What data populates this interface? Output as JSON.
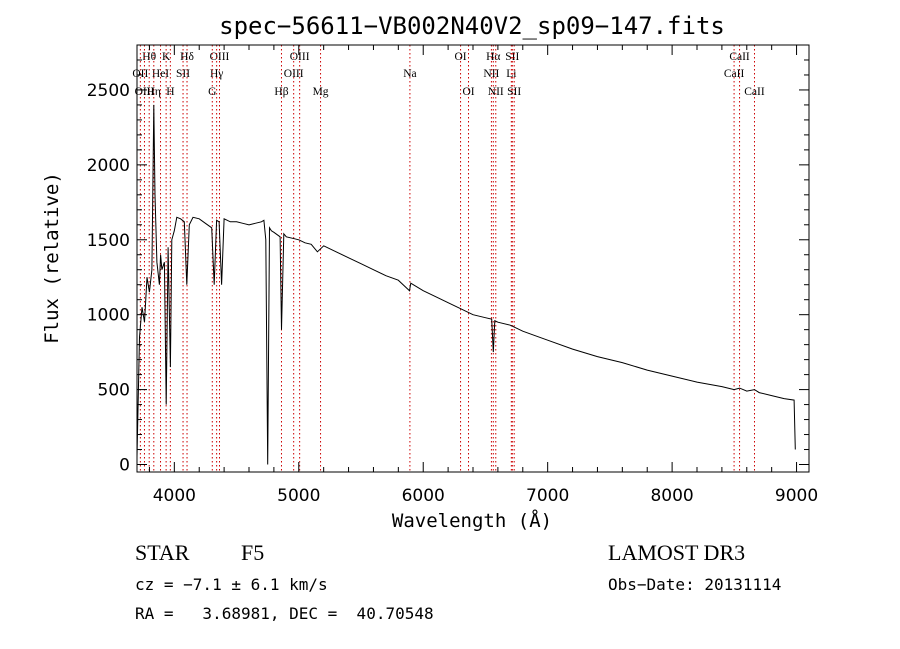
{
  "chart_data": {
    "type": "line",
    "title": "spec−56611−VB002N40V2_sp09−147.fits",
    "xlabel": "Wavelength (Å)",
    "ylabel": "Flux (relative)",
    "xlim": [
      3700,
      9100
    ],
    "ylim": [
      -50,
      2800
    ],
    "x_ticks": [
      4000,
      5000,
      6000,
      7000,
      8000,
      9000
    ],
    "x_tick_labels": [
      "4000",
      "5000",
      "6000",
      "7000",
      "8000",
      "9000"
    ],
    "y_ticks": [
      0,
      500,
      1000,
      1500,
      2000,
      2500
    ],
    "y_tick_labels": [
      "0",
      "500",
      "1000",
      "1500",
      "2000",
      "2500"
    ],
    "line_color": "#000000",
    "marker_color": "#cc0000",
    "series": [
      {
        "name": "flux",
        "x": [
          3700,
          3720,
          3740,
          3760,
          3780,
          3800,
          3820,
          3835,
          3845,
          3860,
          3880,
          3890,
          3900,
          3920,
          3935,
          3950,
          3968,
          3980,
          4000,
          4020,
          4050,
          4080,
          4100,
          4120,
          4150,
          4200,
          4250,
          4300,
          4320,
          4340,
          4360,
          4380,
          4400,
          4450,
          4500,
          4550,
          4600,
          4650,
          4700,
          4720,
          4735,
          4750,
          4765,
          4780,
          4800,
          4850,
          4861,
          4880,
          4900,
          4950,
          5000,
          5050,
          5100,
          5150,
          5200,
          5300,
          5400,
          5500,
          5600,
          5700,
          5800,
          5890,
          5900,
          6000,
          6100,
          6200,
          6300,
          6400,
          6500,
          6550,
          6563,
          6575,
          6600,
          6700,
          6800,
          6900,
          7000,
          7200,
          7400,
          7600,
          7800,
          8000,
          8200,
          8400,
          8498,
          8542,
          8600,
          8662,
          8700,
          8800,
          8900,
          8980,
          8990
        ],
        "y": [
          50,
          850,
          1050,
          950,
          1250,
          1150,
          1300,
          2400,
          1800,
          1350,
          1200,
          1400,
          1300,
          1350,
          400,
          1450,
          650,
          1500,
          1560,
          1650,
          1640,
          1620,
          1200,
          1600,
          1650,
          1640,
          1610,
          1580,
          1200,
          1630,
          1620,
          1200,
          1640,
          1620,
          1620,
          1610,
          1600,
          1610,
          1620,
          1630,
          1500,
          0,
          1580,
          1560,
          1550,
          1520,
          900,
          1540,
          1520,
          1510,
          1500,
          1480,
          1470,
          1420,
          1460,
          1420,
          1380,
          1340,
          1300,
          1260,
          1230,
          1160,
          1210,
          1160,
          1120,
          1080,
          1040,
          1000,
          980,
          970,
          750,
          960,
          950,
          930,
          890,
          860,
          830,
          770,
          720,
          680,
          630,
          590,
          550,
          520,
          500,
          510,
          490,
          500,
          480,
          460,
          440,
          430,
          100
        ]
      }
    ],
    "line_markers": [
      {
        "label": "Hθ",
        "wavelength": 3798,
        "row": 1
      },
      {
        "label": "OII",
        "wavelength": 3727,
        "row": 2
      },
      {
        "label": "OIII",
        "wavelength": 3760,
        "row": 3
      },
      {
        "label": "K",
        "wavelength": 3934,
        "row": 1
      },
      {
        "label": "HeI",
        "wavelength": 3889,
        "row": 2
      },
      {
        "label": "Hη",
        "wavelength": 3835,
        "row": 3
      },
      {
        "label": "Hδ",
        "wavelength": 4102,
        "row": 1
      },
      {
        "label": "SII",
        "wavelength": 4070,
        "row": 2
      },
      {
        "label": "H",
        "wavelength": 3968,
        "row": 3
      },
      {
        "label": "OIII",
        "wavelength": 4363,
        "row": 1
      },
      {
        "label": "Hγ",
        "wavelength": 4340,
        "row": 2
      },
      {
        "label": "G",
        "wavelength": 4305,
        "row": 3
      },
      {
        "label": "OIII",
        "wavelength": 5007,
        "row": 1
      },
      {
        "label": "OIII",
        "wavelength": 4959,
        "row": 2
      },
      {
        "label": "Hβ",
        "wavelength": 4861,
        "row": 3
      },
      {
        "label": "Mg",
        "wavelength": 5175,
        "row": 3
      },
      {
        "label": "Na",
        "wavelength": 5893,
        "row": 2
      },
      {
        "label": "OI",
        "wavelength": 6300,
        "row": 1
      },
      {
        "label": "OI",
        "wavelength": 6364,
        "row": 3
      },
      {
        "label": "Hα",
        "wavelength": 6563,
        "row": 1
      },
      {
        "label": "SII",
        "wavelength": 6716,
        "row": 1
      },
      {
        "label": "NII",
        "wavelength": 6548,
        "row": 2
      },
      {
        "label": "Li",
        "wavelength": 6708,
        "row": 2
      },
      {
        "label": "NII",
        "wavelength": 6583,
        "row": 3
      },
      {
        "label": "SII",
        "wavelength": 6731,
        "row": 3
      },
      {
        "label": "CaII",
        "wavelength": 8542,
        "row": 1
      },
      {
        "label": "CaII",
        "wavelength": 8498,
        "row": 2
      },
      {
        "label": "CaII",
        "wavelength": 8662,
        "row": 3
      }
    ]
  },
  "info": {
    "class_label": "STAR",
    "subclass": "F5",
    "survey": "LAMOST DR3",
    "cz_line": "cz = −7.1 ± 6.1 km/s",
    "obs_date": "Obs−Date: 20131114",
    "coords": "RA =   3.68981, DEC =  40.70548"
  }
}
